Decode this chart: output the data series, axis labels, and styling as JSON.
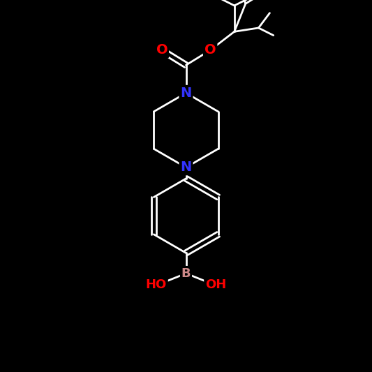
{
  "background_color": "#000000",
  "bond_color": "#000000",
  "atom_colors": {
    "N": "#3333FF",
    "O": "#FF0000",
    "B": "#CC8888",
    "HO": "#FF0000",
    "OH": "#FF0000",
    "C": "#000000"
  },
  "title": "",
  "figsize": [
    5.33,
    5.33
  ],
  "dpi": 100
}
